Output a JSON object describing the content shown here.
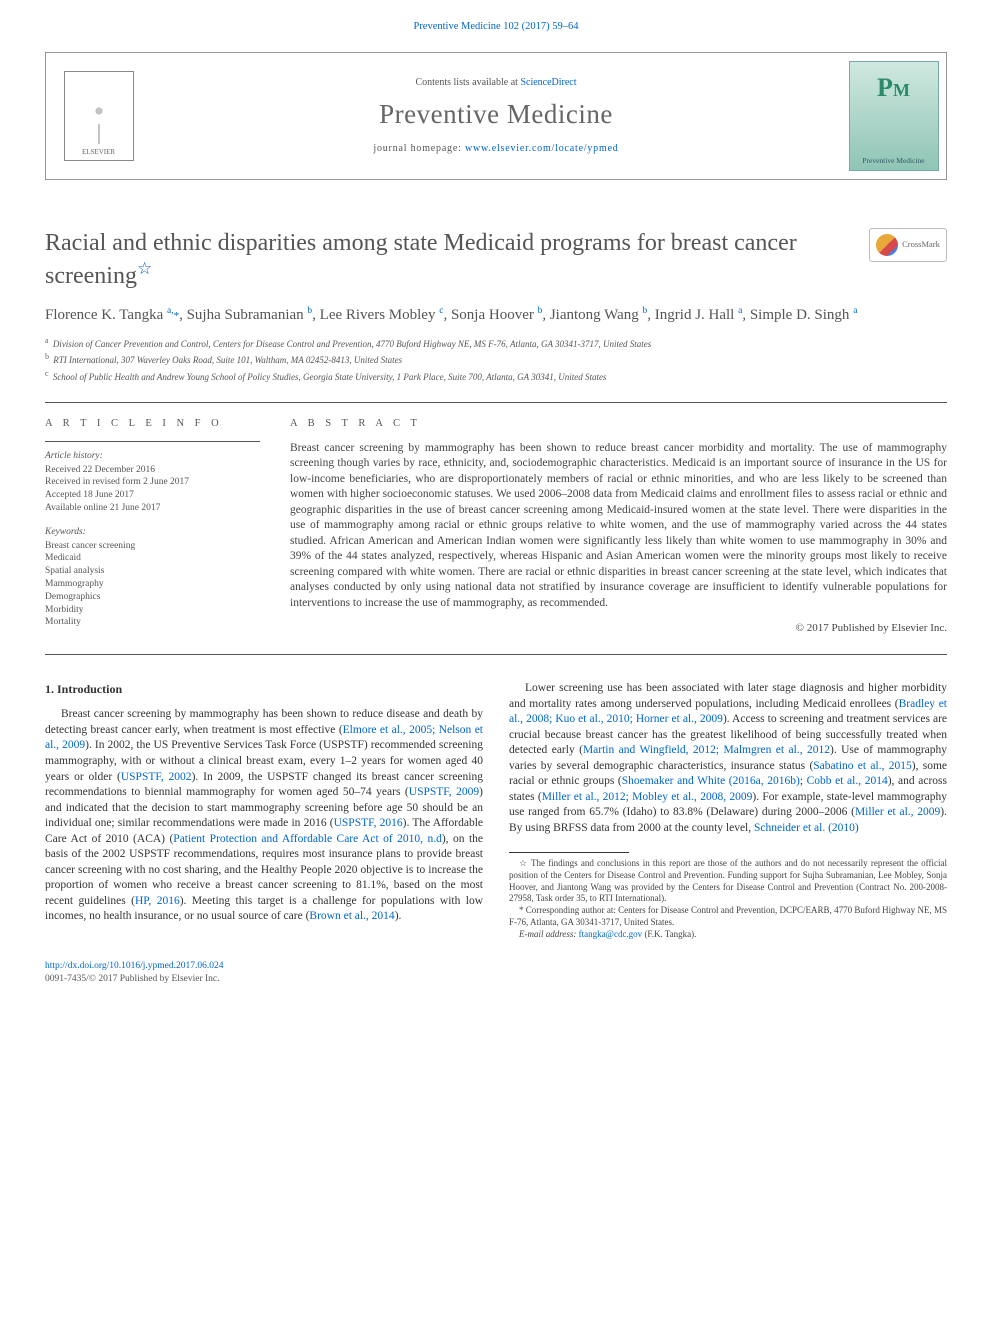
{
  "colors": {
    "link": "#0066cc",
    "heading_grey": "#555555",
    "body_text": "#333333",
    "rule": "#555555",
    "logo_green_top": "#d0e8e0",
    "logo_green_bot": "#8fc5b5"
  },
  "fonts": {
    "body_family": "Georgia, Times New Roman, serif",
    "body_pt": 11.5,
    "title_pt": 24,
    "authors_pt": 15,
    "journal_pt": 27
  },
  "top": {
    "citation": "Preventive Medicine 102 (2017) 59–64",
    "contents_line_pre": "Contents lists available at ",
    "contents_line_link": "ScienceDirect",
    "journal_name": "Preventive Medicine",
    "homepage_pre": "journal homepage: ",
    "homepage_url": "www.elsevier.com/locate/ypmed",
    "elsevier_label": "ELSEVIER",
    "journal_logo_small": "Preventive Medicine"
  },
  "crossmark": "CrossMark",
  "title": "Racial and ethnic disparities among state Medicaid programs for breast cancer screening",
  "title_star": "☆",
  "authors_html": "Florence K. Tangka <sup>a,</sup><span class='ast'>*</span>, Sujha Subramanian <sup>b</sup>, Lee Rivers Mobley <sup>c</sup>, Sonja Hoover <sup>b</sup>, Jiantong Wang <sup>b</sup>, Ingrid J. Hall <sup>a</sup>, Simple D. Singh <sup>a</sup>",
  "affiliations": [
    {
      "sup": "a",
      "text": "Division of Cancer Prevention and Control, Centers for Disease Control and Prevention, 4770 Buford Highway NE, MS F-76, Atlanta, GA 30341-3717, United States"
    },
    {
      "sup": "b",
      "text": "RTI International, 307 Waverley Oaks Road, Suite 101, Waltham, MA 02452-8413, United States"
    },
    {
      "sup": "c",
      "text": "School of Public Health and Andrew Young School of Policy Studies, Georgia State University, 1 Park Place, Suite 700, Atlanta, GA 30341, United States"
    }
  ],
  "info_head": "A R T I C L E   I N F O",
  "abs_head": "A B S T R A C T",
  "history_head": "Article history:",
  "history": [
    "Received 22 December 2016",
    "Received in revised form 2 June 2017",
    "Accepted 18 June 2017",
    "Available online 21 June 2017"
  ],
  "keywords_head": "Keywords:",
  "keywords": [
    "Breast cancer screening",
    "Medicaid",
    "Spatial analysis",
    "Mammography",
    "Demographics",
    "Morbidity",
    "Mortality"
  ],
  "abstract": "Breast cancer screening by mammography has been shown to reduce breast cancer morbidity and mortality. The use of mammography screening though varies by race, ethnicity, and, sociodemographic characteristics. Medicaid is an important source of insurance in the US for low-income beneficiaries, who are disproportionately members of racial or ethnic minorities, and who are less likely to be screened than women with higher socioeconomic statuses. We used 2006–2008 data from Medicaid claims and enrollment files to assess racial or ethnic and geographic disparities in the use of breast cancer screening among Medicaid-insured women at the state level. There were disparities in the use of mammography among racial or ethnic groups relative to white women, and the use of mammography varied across the 44 states studied. African American and American Indian women were significantly less likely than white women to use mammography in 30% and 39% of the 44 states analyzed, respectively, whereas Hispanic and Asian American women were the minority groups most likely to receive screening compared with white women. There are racial or ethnic disparities in breast cancer screening at the state level, which indicates that analyses conducted by only using national data not stratified by insurance coverage are insufficient to identify vulnerable populations for interventions to increase the use of mammography, as recommended.",
  "copyright_abs": "© 2017 Published by Elsevier Inc.",
  "intro_head": "1. Introduction",
  "intro_para1_pre": "Breast cancer screening by mammography has been shown to reduce disease and death by detecting breast cancer early, when treatment is most effective (",
  "intro_para1_l1": "Elmore et al., 2005; Nelson et al., 2009",
  "intro_para1_mid1": "). In 2002, the US Preventive Services Task Force (USPSTF) recommended screening mammography, with or without a clinical breast exam, every 1–2 years for women aged 40 years or older (",
  "intro_para1_l2": "USPSTF, 2002",
  "intro_para1_mid2": "). In 2009, the USPSTF changed its breast cancer screening recommendations to biennial mammography for women aged 50–74 years (",
  "intro_para1_l3": "USPSTF, 2009",
  "intro_para1_mid3": ") and indicated that the decision to start mammography screening before age 50 should be an individual one; similar recommendations were made in 2016 (",
  "intro_para1_l4": "USPSTF, 2016",
  "intro_para1_mid4": "). The Affordable Care Act of 2010 (ACA) (",
  "intro_para1_l5": "Patient Protection and Affordable Care Act of 2010, n.d",
  "intro_para1_mid5": "), on the basis of the 2002 USPSTF recommendations, requires most insurance plans to provide breast cancer screening with no cost sharing, and the Healthy People 2020 objective is to increase the proportion of women who receive a breast cancer screening to 81.1%, based on the most recent guidelines (",
  "intro_para1_l6": "HP, 2016",
  "intro_para1_mid6": "). Meeting this target is a challenge for populations with low incomes, no health insurance, or no usual source of care (",
  "intro_para1_l7": "Brown et al., 2014",
  "intro_para1_end": ").",
  "intro_para2_pre": "Lower screening use has been associated with later stage diagnosis and higher morbidity and mortality rates among underserved populations, including Medicaid enrollees (",
  "intro_para2_l1": "Bradley et al., 2008; Kuo et al., 2010; Horner et al., 2009",
  "intro_para2_mid1": "). Access to screening and treatment services are crucial because breast cancer has the greatest likelihood of being successfully treated when detected early (",
  "intro_para2_l2": "Martin and Wingfield, 2012; Malmgren et al., 2012",
  "intro_para2_mid2": "). Use of mammography varies by several demographic characteristics, insurance status (",
  "intro_para2_l3": "Sabatino et al., 2015",
  "intro_para2_mid3": "), some racial or ethnic groups (",
  "intro_para2_l4": "Shoemaker and White (2016a, 2016b)",
  "intro_para2_mid4": "; ",
  "intro_para2_l5": "Cobb et al., 2014",
  "intro_para2_mid5": "), and across states (",
  "intro_para2_l6": "Miller et al., 2012; Mobley et al., 2008, 2009",
  "intro_para2_mid6": "). For example, state-level mammography use ranged from 65.7% (Idaho) to 83.8% (Delaware) during 2000–2006 (",
  "intro_para2_l7": "Miller et al., 2009",
  "intro_para2_mid7": "). By using BRFSS data from 2000 at the county level, ",
  "intro_para2_l8": "Schneider et al. (2010)",
  "footnote_star": "☆ The findings and conclusions in this report are those of the authors and do not necessarily represent the official position of the Centers for Disease Control and Prevention. Funding support for Sujha Subramanian, Lee Mobley, Sonja Hoover, and Jiantong Wang was provided by the Centers for Disease Control and Prevention (Contract No. 200-2008-27958, Task order 35, to RTI International).",
  "footnote_corr": "* Corresponding author at: Centers for Disease Control and Prevention, DCPC/EARB, 4770 Buford Highway NE, MS F-76, Atlanta, GA 30341-3717, United States.",
  "footnote_email_label": "E-mail address: ",
  "footnote_email": "ftangka@cdc.gov",
  "footnote_email_tail": " (F.K. Tangka).",
  "doi": "http://dx.doi.org/10.1016/j.ypmed.2017.06.024",
  "issn_line": "0091-7435/© 2017 Published by Elsevier Inc."
}
